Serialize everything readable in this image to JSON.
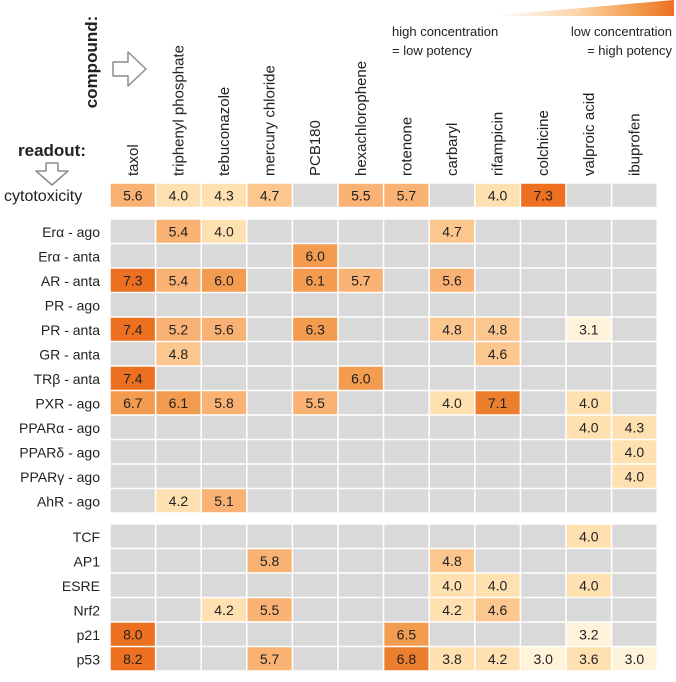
{
  "labels": {
    "compound_axis": "compound:",
    "readout_axis": "readout:",
    "legend_high": [
      "high concentration",
      "= low potency"
    ],
    "legend_low": [
      "low concentration",
      "= high potency"
    ]
  },
  "colors": {
    "empty": "#d9d9d9",
    "scale": [
      "#fff3d9",
      "#ffe1b1",
      "#fcc78e",
      "#f9b273",
      "#f39b4e",
      "#ec7f2e"
    ],
    "strongest": "#ec7020",
    "separator": "#ffffff",
    "text": "#222222"
  },
  "chart_data": {
    "type": "heatmap",
    "title": "",
    "x_label": "compound",
    "y_label": "readout",
    "value_meaning": "potency; higher value = lower effective concentration = higher potency",
    "columns": [
      "taxol",
      "triphenyl phosphate",
      "tebuconazole",
      "mercury chloride",
      "PCB180",
      "hexachlorophene",
      "rotenone",
      "carbaryl",
      "rifampicin",
      "colchicine",
      "valproic acid",
      "ibuprofen"
    ],
    "groups": [
      {
        "rows": [
          {
            "label": "cytotoxicity",
            "values": [
              5.6,
              4.0,
              4.3,
              4.7,
              null,
              5.5,
              5.7,
              null,
              4.0,
              7.3,
              null,
              null
            ]
          }
        ]
      },
      {
        "rows": [
          {
            "label": "Erα - ago",
            "values": [
              null,
              5.4,
              4.0,
              null,
              null,
              null,
              null,
              4.7,
              null,
              null,
              null,
              null
            ]
          },
          {
            "label": "Erα - anta",
            "values": [
              null,
              null,
              null,
              null,
              6.0,
              null,
              null,
              null,
              null,
              null,
              null,
              null
            ]
          },
          {
            "label": "AR - anta",
            "values": [
              7.3,
              5.4,
              6.0,
              null,
              6.1,
              5.7,
              null,
              5.6,
              null,
              null,
              null,
              null
            ]
          },
          {
            "label": "PR - ago",
            "values": [
              null,
              null,
              null,
              null,
              null,
              null,
              null,
              null,
              null,
              null,
              null,
              null
            ]
          },
          {
            "label": "PR - anta",
            "values": [
              7.4,
              5.2,
              5.6,
              null,
              6.3,
              null,
              null,
              4.8,
              4.8,
              null,
              3.1,
              null
            ]
          },
          {
            "label": "GR - anta",
            "values": [
              null,
              4.8,
              null,
              null,
              null,
              null,
              null,
              null,
              4.6,
              null,
              null,
              null
            ]
          },
          {
            "label": "TRβ - anta",
            "values": [
              7.4,
              null,
              null,
              null,
              null,
              6.0,
              null,
              null,
              null,
              null,
              null,
              null
            ]
          },
          {
            "label": "PXR - ago",
            "values": [
              6.7,
              6.1,
              5.8,
              null,
              5.5,
              null,
              null,
              4.0,
              7.1,
              null,
              4.0,
              null
            ]
          },
          {
            "label": "PPARα - ago",
            "values": [
              null,
              null,
              null,
              null,
              null,
              null,
              null,
              null,
              null,
              null,
              4.0,
              4.3
            ]
          },
          {
            "label": "PPARδ - ago",
            "values": [
              null,
              null,
              null,
              null,
              null,
              null,
              null,
              null,
              null,
              null,
              null,
              4.0
            ]
          },
          {
            "label": "PPARγ - ago",
            "values": [
              null,
              null,
              null,
              null,
              null,
              null,
              null,
              null,
              null,
              null,
              null,
              4.0
            ]
          },
          {
            "label": "AhR - ago",
            "values": [
              null,
              4.2,
              5.1,
              null,
              null,
              null,
              null,
              null,
              null,
              null,
              null,
              null
            ]
          }
        ]
      },
      {
        "rows": [
          {
            "label": "TCF",
            "values": [
              null,
              null,
              null,
              null,
              null,
              null,
              null,
              null,
              null,
              null,
              4.0,
              null
            ]
          },
          {
            "label": "AP1",
            "values": [
              null,
              null,
              null,
              5.8,
              null,
              null,
              null,
              4.8,
              null,
              null,
              null,
              null
            ]
          },
          {
            "label": "ESRE",
            "values": [
              null,
              null,
              null,
              null,
              null,
              null,
              null,
              4.0,
              4.0,
              null,
              4.0,
              null
            ]
          },
          {
            "label": "Nrf2",
            "values": [
              null,
              null,
              4.2,
              5.5,
              null,
              null,
              null,
              4.2,
              4.6,
              null,
              null,
              null
            ]
          },
          {
            "label": "p21",
            "values": [
              8.0,
              null,
              null,
              null,
              null,
              null,
              6.5,
              null,
              null,
              null,
              3.2,
              null
            ]
          },
          {
            "label": "p53",
            "values": [
              8.2,
              null,
              null,
              5.7,
              null,
              null,
              6.8,
              3.8,
              4.2,
              3.0,
              3.6,
              3.0
            ]
          }
        ]
      }
    ]
  }
}
